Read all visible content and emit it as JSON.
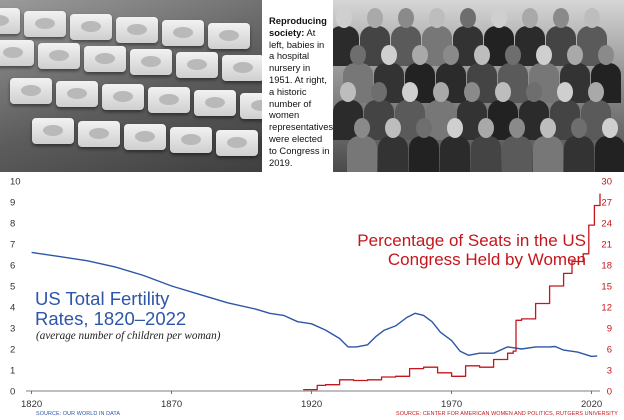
{
  "caption": {
    "bold": "Reproducing society:",
    "text": "At left, babies in a hospital nursery in 1951. At right, a historic number of women representatives were elected to Congress in 2019."
  },
  "photos": {
    "left_alt": "babies in a hospital nursery",
    "right_alt": "women representatives"
  },
  "colors": {
    "fertility": "#2d56a8",
    "congress": "#c4161c",
    "axis": "#555555"
  },
  "chart_data": {
    "type": "line",
    "x_ticks": [
      1820,
      1870,
      1920,
      1970,
      2020
    ],
    "left_axis": {
      "range": [
        0,
        10
      ],
      "ticks": [
        0,
        1,
        2,
        3,
        4,
        5,
        6,
        7,
        8,
        9,
        10
      ]
    },
    "right_axis": {
      "range": [
        0,
        30
      ],
      "ticks": [
        0,
        3,
        6,
        9,
        12,
        15,
        18,
        21,
        24,
        27,
        30
      ]
    },
    "series": [
      {
        "name": "US Total Fertility Rates, 1820–2022",
        "subtitle": "(average number of children per woman)",
        "axis": "left",
        "color": "#2d56a8",
        "x": [
          1820,
          1830,
          1840,
          1850,
          1860,
          1870,
          1880,
          1890,
          1900,
          1905,
          1910,
          1915,
          1920,
          1925,
          1930,
          1933,
          1936,
          1940,
          1943,
          1946,
          1950,
          1954,
          1957,
          1960,
          1963,
          1966,
          1970,
          1973,
          1976,
          1980,
          1985,
          1990,
          1995,
          2000,
          2005,
          2007,
          2010,
          2015,
          2020,
          2022
        ],
        "y": [
          6.6,
          6.4,
          6.2,
          5.9,
          5.5,
          5.0,
          4.6,
          4.2,
          3.9,
          3.7,
          3.6,
          3.3,
          3.2,
          2.9,
          2.5,
          2.1,
          2.1,
          2.2,
          2.6,
          2.9,
          3.1,
          3.5,
          3.7,
          3.6,
          3.3,
          2.8,
          2.4,
          1.9,
          1.7,
          1.8,
          1.8,
          2.1,
          2.0,
          2.1,
          2.1,
          2.12,
          1.95,
          1.85,
          1.65,
          1.67
        ]
      },
      {
        "name": "Percentage of Seats in the US Congress Held by Women",
        "axis": "right",
        "color": "#c4161c",
        "x": [
          1917,
          1920,
          1922,
          1925,
          1930,
          1935,
          1940,
          1945,
          1950,
          1955,
          1960,
          1965,
          1970,
          1975,
          1980,
          1985,
          1990,
          1992,
          1993,
          1995,
          2000,
          2005,
          2010,
          2013,
          2017,
          2019,
          2021,
          2023
        ],
        "y": [
          0.2,
          0.2,
          0.8,
          0.9,
          1.6,
          1.5,
          1.6,
          2.0,
          2.1,
          3.2,
          3.4,
          2.6,
          2.1,
          3.6,
          3.4,
          4.5,
          5.4,
          5.7,
          10.1,
          10.3,
          12.5,
          15.0,
          16.8,
          18.5,
          19.6,
          23.7,
          26.5,
          28.2
        ]
      }
    ]
  },
  "titles": {
    "fertility": "US Total Fertility Rates, 1820–2022",
    "fertility_subtitle": "(average number of children per woman)",
    "congress": "Percentage of Seats in the US Congress Held by Women"
  },
  "sources": {
    "left_label": "SOURCE:",
    "left": "OUR WORLD IN DATA",
    "right_label": "SOURCE:",
    "right": "CENTER FOR AMERICAN WOMEN AND POLITICS, RUTGERS UNIVERSITY"
  }
}
